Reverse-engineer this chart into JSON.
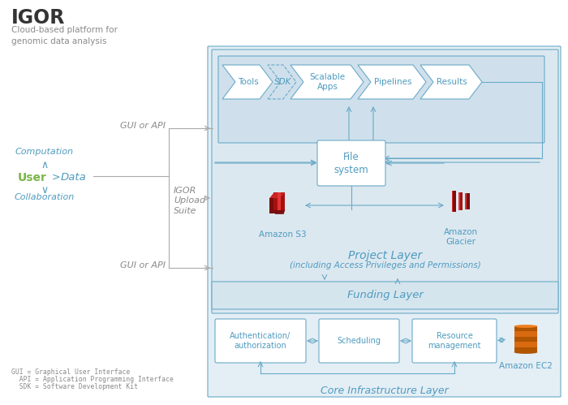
{
  "title": "IGOR",
  "subtitle": "Cloud-based platform for\ngenomics data analysis",
  "bg_color": "#ffffff",
  "proj_bg": "#dce8f0",
  "inner_bg": "#e4eef5",
  "tools_bg": "#cfe0ec",
  "fund_bg": "#d5e5ee",
  "box_border": "#6aaac8",
  "text_blue": "#4e9bbf",
  "text_dark": "#333333",
  "text_gray": "#8a8a8a",
  "green_color": "#7ab648",
  "orange_color": "#e8731a",
  "red_dark": "#8B1010",
  "red_mid": "#B52020",
  "red_light": "#CC3333",
  "footnotes": [
    "GUI = Graphical User Interface",
    "  API = Application Programming Interface",
    "  SDK = Software Development Kit"
  ],
  "figw": 7.0,
  "figh": 4.99,
  "dpi": 100
}
